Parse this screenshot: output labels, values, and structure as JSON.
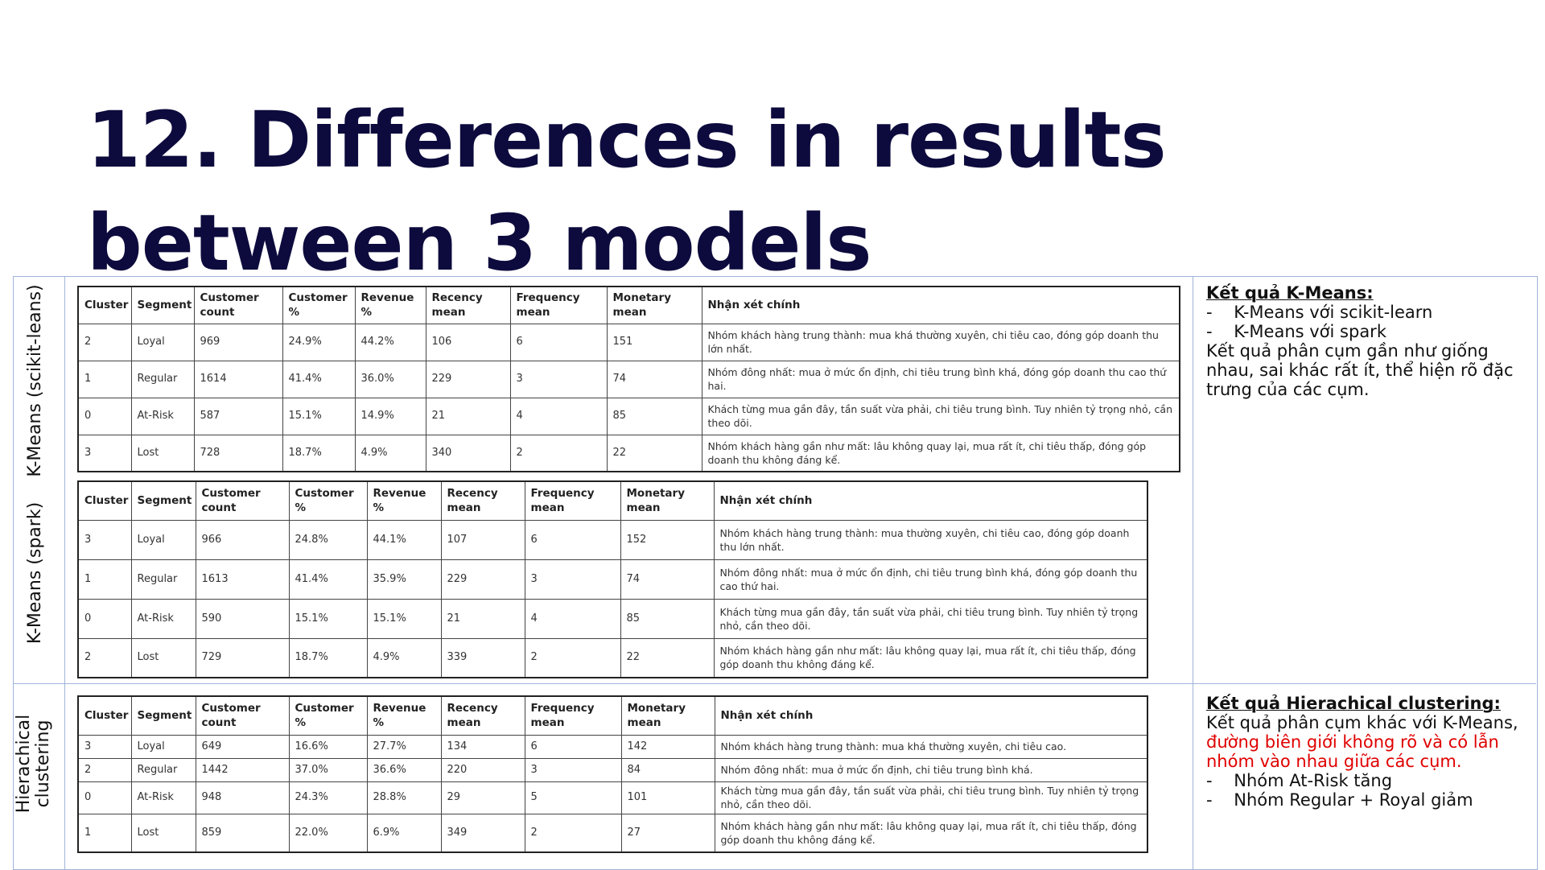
{
  "title": "12. Differences in results between 3 models",
  "row_labels": {
    "kmeans_sklearn": "K-Means (scikit-leans)",
    "kmeans_spark": "K-Means (spark)",
    "hierarchical_line1": "Hierachical",
    "hierarchical_line2": "clustering"
  },
  "headers": [
    "Cluster",
    "Segment",
    "Customer count",
    "Customer %",
    "Revenue %",
    "Recency mean",
    "Frequency mean",
    "Monetary mean",
    "Nhận xét chính"
  ],
  "tables": {
    "sklearn": [
      [
        "2",
        "Loyal",
        "969",
        "24.9%",
        "44.2%",
        "106",
        "6",
        "151",
        "Nhóm khách hàng trung thành: mua khá thường xuyên, chi tiêu cao, đóng góp doanh thu lớn nhất."
      ],
      [
        "1",
        "Regular",
        "1614",
        "41.4%",
        "36.0%",
        "229",
        "3",
        "74",
        "Nhóm đông nhất: mua ở mức ổn định, chi tiêu trung bình khá, đóng góp doanh thu cao thứ hai."
      ],
      [
        "0",
        "At-Risk",
        "587",
        "15.1%",
        "14.9%",
        "21",
        "4",
        "85",
        "Khách từng mua gần đây, tần suất vừa phải, chi tiêu trung bình. Tuy nhiên tỷ trọng nhỏ, cần theo dõi."
      ],
      [
        "3",
        "Lost",
        "728",
        "18.7%",
        "4.9%",
        "340",
        "2",
        "22",
        "Nhóm khách hàng gần như mất: lâu không quay lại, mua rất ít, chi tiêu thấp, đóng góp doanh thu không đáng kể."
      ]
    ],
    "spark": [
      [
        "3",
        "Loyal",
        "966",
        "24.8%",
        "44.1%",
        "107",
        "6",
        "152",
        "Nhóm khách hàng trung thành: mua thường xuyên, chi tiêu cao, đóng góp doanh thu lớn nhất."
      ],
      [
        "1",
        "Regular",
        "1613",
        "41.4%",
        "35.9%",
        "229",
        "3",
        "74",
        "Nhóm đông nhất: mua ở mức ổn định, chi tiêu trung bình khá, đóng góp doanh thu cao thứ hai."
      ],
      [
        "0",
        "At-Risk",
        "590",
        "15.1%",
        "15.1%",
        "21",
        "4",
        "85",
        "Khách từng mua gần đây, tần suất vừa phải, chi tiêu trung bình. Tuy nhiên tỷ trọng nhỏ, cần theo dõi."
      ],
      [
        "2",
        "Lost",
        "729",
        "18.7%",
        "4.9%",
        "339",
        "2",
        "22",
        "Nhóm khách hàng gần như mất: lâu không quay lại, mua rất ít, chi tiêu thấp, đóng góp doanh thu không đáng kể."
      ]
    ],
    "hierarchical": [
      [
        "3",
        "Loyal",
        "649",
        "16.6%",
        "27.7%",
        "134",
        "6",
        "142",
        "Nhóm khách hàng trung thành: mua khá thường xuyên, chi tiêu cao."
      ],
      [
        "2",
        "Regular",
        "1442",
        "37.0%",
        "36.6%",
        "220",
        "3",
        "84",
        "Nhóm đông nhất: mua ở mức ổn định, chi tiêu trung bình khá."
      ],
      [
        "0",
        "At-Risk",
        "948",
        "24.3%",
        "28.8%",
        "29",
        "5",
        "101",
        "Khách từng mua gần đây, tần suất vừa phải, chi tiêu trung bình. Tuy nhiên tỷ trọng nhỏ, cần theo dõi."
      ],
      [
        "1",
        "Lost",
        "859",
        "22.0%",
        "6.9%",
        "349",
        "2",
        "27",
        "Nhóm khách hàng gần như mất: lâu không quay lại, mua rất ít, chi tiêu thấp, đóng góp doanh thu không đáng kể."
      ]
    ]
  },
  "kmeans_notes": {
    "heading": "Kết quả K-Means:",
    "item1": "-    K-Means với scikit-learn",
    "item2": "-    K-Means với spark",
    "summary": "Kết quả phân cụm gần như giống nhau, sai khác rất ít, thể hiện rõ đặc trưng của các cụm."
  },
  "hier_notes": {
    "heading": "Kết quả Hierachical clustering:",
    "text_plain": "Kết quả phân cụm khác với K-Means, ",
    "text_red": "đường biên giới không rõ và có lẫn nhóm vào nhau giữa các cụm.",
    "item1": "-    Nhóm At-Risk tăng",
    "item2": "-    Nhóm Regular + Royal giảm"
  },
  "colors": {
    "title": "#0d0b3d",
    "frame": "#9fb4d8",
    "highlight": "#e00000"
  }
}
